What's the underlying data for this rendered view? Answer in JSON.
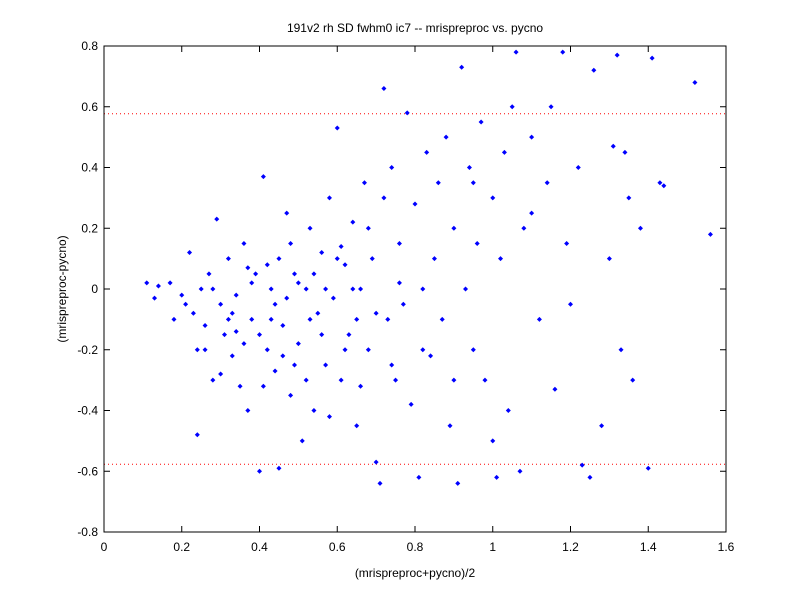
{
  "chart_data": {
    "type": "scatter",
    "title": "191v2 rh SD fwhm0 ic7 -- mrispreproc vs. pycno",
    "x_label": "(mrispreproc+pycno)/2",
    "y_label": "(mrispreproc-pycno)",
    "color": "#0000ff",
    "xlim": [
      0,
      1.6
    ],
    "ylim": [
      -0.8,
      0.8
    ],
    "xticks": [
      0,
      0.2,
      0.4,
      0.6,
      0.8,
      1,
      1.2,
      1.4,
      1.6
    ],
    "yticks": [
      -0.8,
      -0.6,
      -0.4,
      -0.2,
      0,
      0.2,
      0.4,
      0.6,
      0.8
    ],
    "reference_lines": {
      "values": [
        0.577,
        -0.577
      ],
      "color": "#ff0000"
    },
    "x": [
      0.11,
      0.13,
      0.14,
      0.17,
      0.18,
      0.2,
      0.21,
      0.22,
      0.23,
      0.24,
      0.24,
      0.25,
      0.26,
      0.27,
      0.28,
      0.29,
      0.3,
      0.31,
      0.32,
      0.33,
      0.34,
      0.35,
      0.36,
      0.37,
      0.38,
      0.39,
      0.4,
      0.41,
      0.42,
      0.43,
      0.44,
      0.45,
      0.45,
      0.46,
      0.47,
      0.48,
      0.49,
      0.5,
      0.51,
      0.52,
      0.53,
      0.54,
      0.55,
      0.56,
      0.57,
      0.58,
      0.59,
      0.6,
      0.61,
      0.62,
      0.63,
      0.64,
      0.65,
      0.66,
      0.67,
      0.68,
      0.69,
      0.7,
      0.71,
      0.72,
      0.73,
      0.74,
      0.75,
      0.76,
      0.77,
      0.78,
      0.79,
      0.8,
      0.81,
      0.82,
      0.83,
      0.84,
      0.85,
      0.86,
      0.87,
      0.88,
      0.89,
      0.9,
      0.91,
      0.92,
      0.93,
      0.94,
      0.95,
      0.96,
      0.97,
      0.98,
      1.0,
      1.01,
      1.02,
      1.03,
      1.04,
      1.05,
      1.06,
      1.07,
      1.08,
      1.1,
      1.12,
      1.14,
      1.16,
      1.18,
      1.19,
      1.2,
      1.22,
      1.23,
      1.25,
      1.26,
      1.28,
      1.3,
      1.31,
      1.32,
      1.33,
      1.34,
      1.36,
      1.38,
      1.4,
      1.41,
      1.43,
      1.52,
      1.56,
      1.1,
      0.3,
      0.33,
      0.36,
      0.38,
      0.4,
      0.42,
      0.44,
      0.46,
      0.48,
      0.5,
      0.52,
      0.54,
      0.56,
      0.58,
      0.6,
      0.62,
      0.64,
      0.66,
      0.68,
      0.7,
      0.72,
      0.74,
      0.76,
      0.34,
      0.37,
      0.41,
      0.43,
      0.47,
      0.49,
      0.53,
      0.57,
      0.61,
      0.65,
      0.82,
      0.9,
      0.95,
      1.0,
      1.15,
      1.35,
      1.44,
      0.26,
      0.28,
      0.32
    ],
    "values": [
      0.02,
      -0.03,
      0.01,
      0.02,
      -0.1,
      -0.02,
      -0.05,
      0.12,
      -0.08,
      -0.48,
      -0.2,
      0.0,
      -0.12,
      0.05,
      -0.3,
      0.23,
      -0.05,
      -0.15,
      0.1,
      -0.22,
      -0.02,
      -0.32,
      0.15,
      -0.4,
      -0.1,
      0.05,
      -0.6,
      0.37,
      -0.2,
      0.0,
      -0.27,
      -0.59,
      0.1,
      -0.12,
      0.25,
      -0.35,
      0.05,
      -0.18,
      -0.5,
      0.0,
      0.2,
      -0.4,
      -0.08,
      0.12,
      -0.25,
      0.3,
      -0.03,
      0.53,
      -0.3,
      0.08,
      -0.15,
      0.22,
      -0.45,
      0.0,
      0.35,
      -0.2,
      0.1,
      -0.57,
      -0.64,
      0.66,
      -0.1,
      0.4,
      -0.3,
      0.15,
      -0.05,
      0.58,
      -0.38,
      0.28,
      -0.62,
      0.0,
      0.45,
      -0.22,
      0.1,
      0.35,
      -0.1,
      0.5,
      -0.45,
      0.2,
      -0.64,
      0.73,
      0.0,
      0.4,
      -0.2,
      0.15,
      0.55,
      -0.3,
      0.3,
      -0.62,
      0.1,
      0.45,
      -0.4,
      0.6,
      0.78,
      -0.6,
      0.2,
      0.5,
      -0.1,
      0.35,
      -0.33,
      0.78,
      0.15,
      -0.05,
      0.4,
      -0.58,
      -0.62,
      0.72,
      -0.45,
      0.1,
      0.47,
      0.77,
      -0.2,
      0.45,
      -0.3,
      0.2,
      -0.59,
      0.76,
      0.35,
      0.68,
      0.18,
      0.25,
      -0.28,
      -0.08,
      -0.18,
      0.02,
      -0.15,
      0.08,
      -0.05,
      -0.22,
      0.15,
      0.02,
      -0.3,
      0.05,
      -0.15,
      -0.42,
      0.1,
      -0.2,
      0.0,
      -0.32,
      0.2,
      -0.08,
      0.3,
      -0.25,
      0.02,
      -0.14,
      0.07,
      -0.32,
      -0.1,
      -0.03,
      -0.25,
      -0.1,
      0.0,
      0.14,
      -0.1,
      -0.2,
      -0.3,
      0.35,
      -0.5,
      0.6,
      0.3,
      0.34,
      -0.2,
      0.0,
      -0.1
    ]
  }
}
